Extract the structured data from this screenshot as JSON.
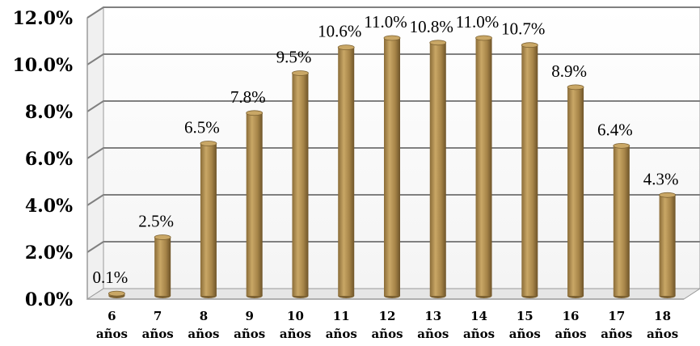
{
  "chart_data": {
    "type": "bar",
    "categories": [
      [
        "6",
        "años"
      ],
      [
        "7",
        "años"
      ],
      [
        "8",
        "años"
      ],
      [
        "9",
        "años"
      ],
      [
        "10",
        "años"
      ],
      [
        "11",
        "años"
      ],
      [
        "12",
        "años"
      ],
      [
        "13",
        "años"
      ],
      [
        "14",
        "años"
      ],
      [
        "15",
        "años"
      ],
      [
        "16",
        "años"
      ],
      [
        "17",
        "años"
      ],
      [
        "18",
        "años"
      ]
    ],
    "values": [
      0.1,
      2.5,
      6.5,
      7.8,
      9.5,
      10.6,
      11.0,
      10.8,
      11.0,
      10.7,
      8.9,
      6.4,
      4.3
    ],
    "data_labels": [
      "0.1%",
      "2.5%",
      "6.5%",
      "7.8%",
      "9.5%",
      "10.6%",
      "11.0%",
      "10.8%",
      "11.0%",
      "10.7%",
      "8.9%",
      "6.4%",
      "4.3%"
    ],
    "y_ticks": [
      "0.0%",
      "2.0%",
      "4.0%",
      "6.0%",
      "8.0%",
      "10.0%",
      "12.0%"
    ],
    "ylim": [
      0,
      12
    ],
    "title": "",
    "xlabel": "",
    "ylabel": "",
    "grid": true,
    "legend": "none",
    "bar_color": "#a68448",
    "bar_highlight": "#c9a766",
    "bar_shadow": "#7d6232",
    "grid_color": "#808080"
  }
}
